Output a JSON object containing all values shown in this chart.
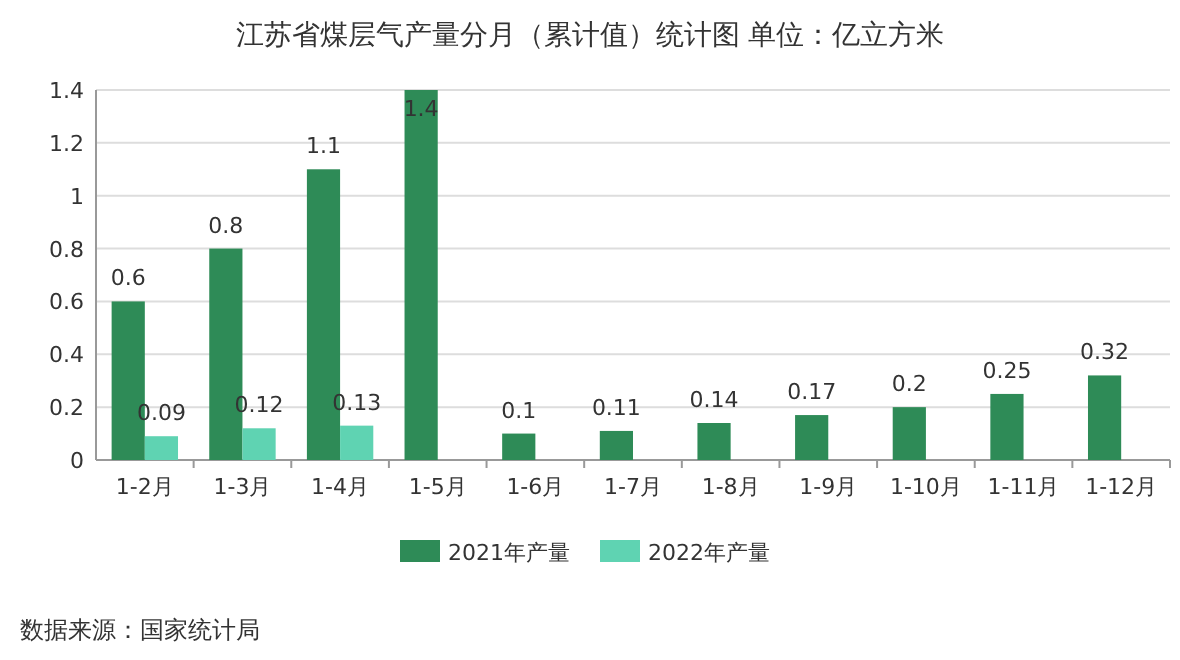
{
  "chart_data": {
    "type": "bar",
    "title": "江苏省煤层气产量分月（累计值）统计图 单位：亿立方米",
    "categories": [
      "1-2月",
      "1-3月",
      "1-4月",
      "1-5月",
      "1-6月",
      "1-7月",
      "1-8月",
      "1-9月",
      "1-10月",
      "1-11月",
      "1-12月"
    ],
    "series": [
      {
        "name": "2021年产量",
        "color": "#2e8b57",
        "values": [
          0.6,
          0.8,
          1.1,
          1.4,
          0.1,
          0.11,
          0.14,
          0.17,
          0.2,
          0.25,
          0.32
        ]
      },
      {
        "name": "2022年产量",
        "color": "#5fd3b2",
        "values": [
          0.09,
          0.12,
          0.13,
          null,
          null,
          null,
          null,
          null,
          null,
          null,
          null
        ]
      }
    ],
    "ylim": [
      0,
      1.4
    ],
    "yticks": [
      0,
      0.2,
      0.4,
      0.6,
      0.8,
      1,
      1.2,
      1.4
    ],
    "grid": "y",
    "legend": "bottom",
    "data_labels": true,
    "annotations": [
      "数据来源：国家统计局"
    ]
  }
}
